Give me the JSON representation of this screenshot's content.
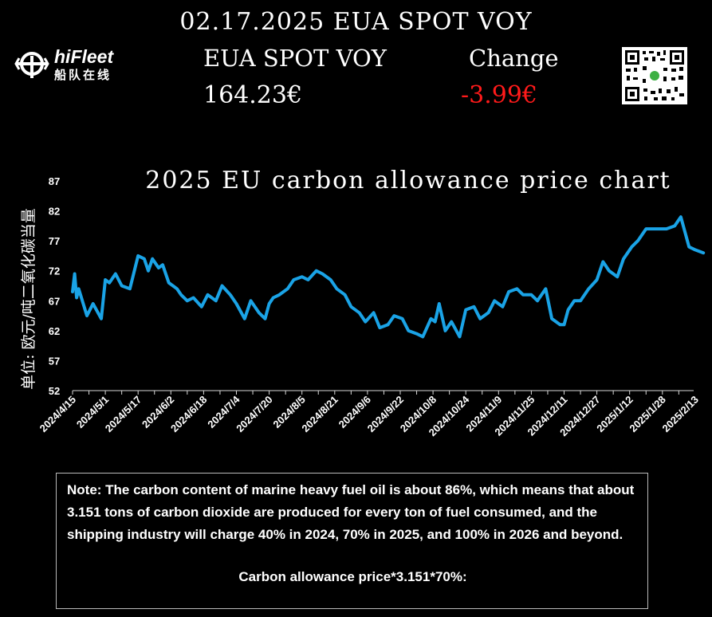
{
  "header": {
    "title": "02.17.2025 EUA SPOT VOY",
    "label_left": "EUA SPOT VOY",
    "label_right": "Change",
    "value_left": "164.23€",
    "value_right": "-3.99€"
  },
  "logo": {
    "name": "hiFleet",
    "name_cn": "船队在线"
  },
  "note": {
    "text": "Note: The carbon content of marine heavy fuel oil is about 86%, which means that about 3.151 tons of carbon dioxide are produced for every ton of fuel consumed, and the shipping industry will charge 40% in 2024, 70% in 2025, and 100% in 2026 and beyond.",
    "formula": "Carbon allowance price*3.151*70%:"
  },
  "colors": {
    "line": "#1aa3e6",
    "change_negative": "#ff1a1a",
    "background": "#000000"
  },
  "chart_data": {
    "type": "line",
    "title": "2025 EU carbon allowance price chart",
    "ylabel": "单位: 欧元/吨二氧化碳当量",
    "ylim": [
      52,
      87
    ],
    "yticks": [
      52,
      57,
      62,
      67,
      72,
      77,
      82,
      87
    ],
    "xticks": [
      "2024/4/15",
      "2024/5/1",
      "2024/5/17",
      "2024/6/2",
      "2024/6/18",
      "2024/7/4",
      "2024/7/20",
      "2024/8/5",
      "2024/8/21",
      "2024/9/6",
      "2024/9/22",
      "2024/10/8",
      "2024/10/24",
      "2024/11/9",
      "2024/11/25",
      "2024/12/11",
      "2024/12/27",
      "2025/1/12",
      "2025/1/28",
      "2025/2/13"
    ],
    "grid": false,
    "x": [
      "2024/4/15",
      "2024/4/16",
      "2024/4/17",
      "2024/4/18",
      "2024/4/22",
      "2024/4/25",
      "2024/4/29",
      "2024/5/1",
      "2024/5/3",
      "2024/5/6",
      "2024/5/9",
      "2024/5/13",
      "2024/5/17",
      "2024/5/20",
      "2024/5/22",
      "2024/5/24",
      "2024/5/27",
      "2024/5/29",
      "2024/6/1",
      "2024/6/3",
      "2024/6/5",
      "2024/6/7",
      "2024/6/10",
      "2024/6/13",
      "2024/6/17",
      "2024/6/20",
      "2024/6/24",
      "2024/6/27",
      "2024/7/1",
      "2024/7/4",
      "2024/7/8",
      "2024/7/11",
      "2024/7/15",
      "2024/7/18",
      "2024/7/20",
      "2024/7/22",
      "2024/7/25",
      "2024/7/29",
      "2024/8/1",
      "2024/8/5",
      "2024/8/8",
      "2024/8/12",
      "2024/8/15",
      "2024/8/19",
      "2024/8/22",
      "2024/8/26",
      "2024/8/29",
      "2024/9/2",
      "2024/9/5",
      "2024/9/9",
      "2024/9/12",
      "2024/9/16",
      "2024/9/19",
      "2024/9/23",
      "2024/9/26",
      "2024/9/30",
      "2024/10/3",
      "2024/10/7",
      "2024/10/9",
      "2024/10/11",
      "2024/10/14",
      "2024/10/17",
      "2024/10/21",
      "2024/10/24",
      "2024/10/28",
      "2024/10/31",
      "2024/11/4",
      "2024/11/7",
      "2024/11/11",
      "2024/11/14",
      "2024/11/18",
      "2024/11/21",
      "2024/11/25",
      "2024/11/28",
      "2024/12/2",
      "2024/12/5",
      "2024/12/9",
      "2024/12/11",
      "2024/12/13",
      "2024/12/16",
      "2024/12/19",
      "2024/12/23",
      "2024/12/27",
      "2024/12/30",
      "2025/1/2",
      "2025/1/6",
      "2025/1/9",
      "2025/1/13",
      "2025/1/16",
      "2025/1/20",
      "2025/1/23",
      "2025/1/27",
      "2025/1/30",
      "2025/2/3",
      "2025/2/6",
      "2025/2/10",
      "2025/2/13",
      "2025/2/17"
    ],
    "series": [
      {
        "values": [
          68.5,
          71.5,
          67.5,
          69,
          64.5,
          66.5,
          64,
          70.5,
          70,
          71.5,
          69.5,
          69,
          74.5,
          74,
          72,
          74,
          72.5,
          73,
          70,
          69.5,
          69,
          68,
          67,
          67.5,
          66,
          68,
          67,
          69.5,
          68,
          66.5,
          64,
          67,
          65,
          64,
          66.5,
          67.5,
          68,
          69,
          70.5,
          71,
          70.5,
          72,
          71.5,
          70.5,
          69,
          68,
          66,
          65,
          63.5,
          65,
          62.5,
          63,
          64.5,
          64,
          62,
          61.5,
          61,
          64,
          63.5,
          66.5,
          62,
          63.5,
          61,
          65.5,
          66,
          64,
          65,
          67,
          66,
          68.5,
          69,
          68,
          68,
          67,
          69,
          64,
          63,
          63,
          65.5,
          67,
          67,
          69,
          70.5,
          73.5,
          72,
          71,
          74,
          76,
          77,
          79,
          79,
          79,
          79,
          79.5,
          81,
          76,
          75.5,
          75
        ]
      }
    ]
  }
}
